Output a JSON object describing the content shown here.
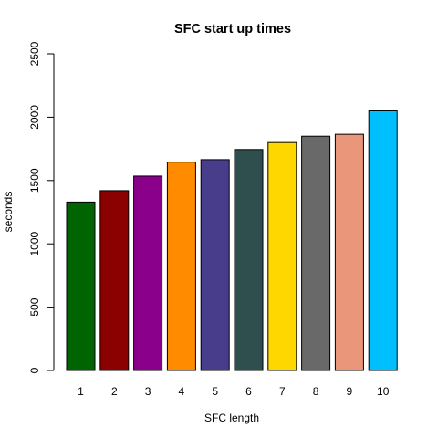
{
  "chart_data": {
    "type": "bar",
    "title": "SFC start up times",
    "xlabel": "SFC length",
    "ylabel": "seconds",
    "categories": [
      "1",
      "2",
      "3",
      "4",
      "5",
      "6",
      "7",
      "8",
      "9",
      "10"
    ],
    "values": [
      1330,
      1420,
      1535,
      1645,
      1665,
      1745,
      1800,
      1850,
      1865,
      2050
    ],
    "colors": [
      "#006400",
      "#8b0000",
      "#8b008b",
      "#ff8c00",
      "#483d8b",
      "#2f4f4f",
      "#ffd700",
      "#696969",
      "#e9967a",
      "#00bfff"
    ],
    "ylim": [
      0,
      2500
    ],
    "yticks": [
      "0",
      "500",
      "1000",
      "1500",
      "2000",
      "2500"
    ],
    "grid": false
  }
}
